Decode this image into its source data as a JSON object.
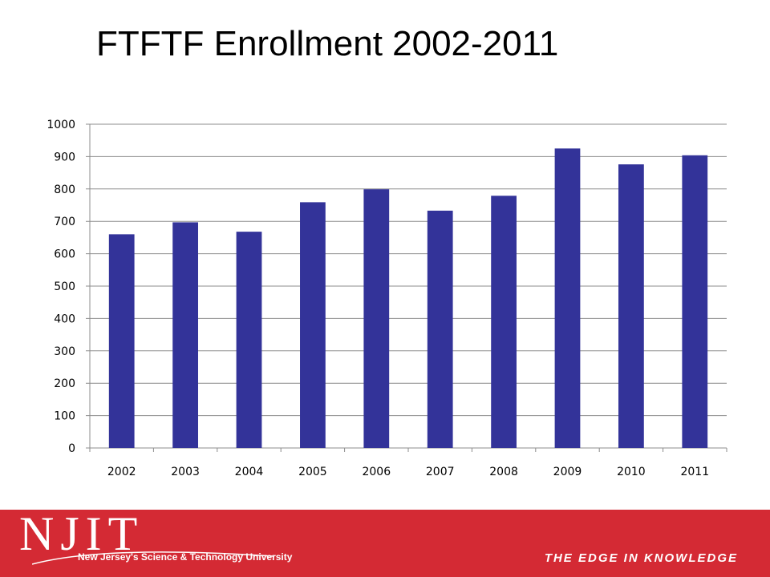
{
  "title": "FTFTF Enrollment 2002-2011",
  "colors": {
    "bar": "#333399",
    "grid": "#8c8c8c",
    "footer_bg": "#d42a34",
    "footer_text": "#ffffff"
  },
  "footer": {
    "logo": "NJIT",
    "tagline": "New Jersey's Science & Technology University",
    "motto": "THE EDGE IN KNOWLEDGE"
  },
  "chart_data": {
    "type": "bar",
    "title": "",
    "xlabel": "",
    "ylabel": "",
    "categories": [
      "2002",
      "2003",
      "2004",
      "2005",
      "2006",
      "2007",
      "2008",
      "2009",
      "2010",
      "2011"
    ],
    "values": [
      660,
      697,
      668,
      759,
      799,
      733,
      779,
      925,
      876,
      904
    ],
    "ylim": [
      0,
      1000
    ],
    "yticks": [
      0,
      100,
      200,
      300,
      400,
      500,
      600,
      700,
      800,
      900,
      1000
    ],
    "grid": true,
    "legend": "none"
  }
}
